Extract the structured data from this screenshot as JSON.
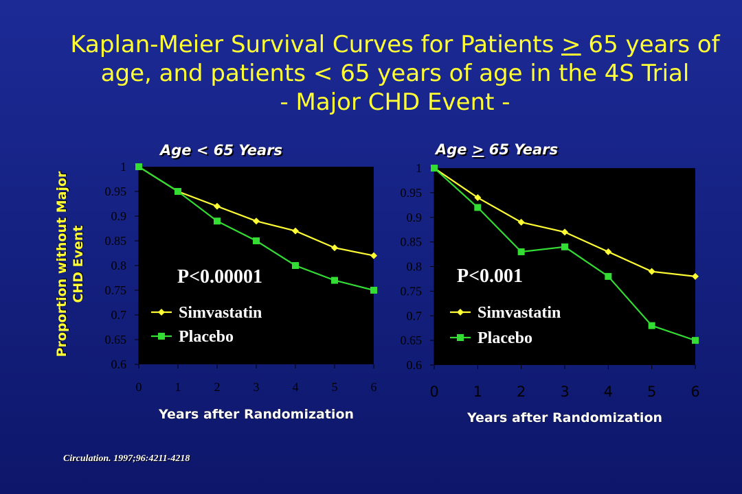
{
  "slide": {
    "title_part1": "Kaplan-Meier Survival Curves for Patients ",
    "title_ge": ">",
    "title_part2": " 65 years of",
    "title_line2": "age, and patients < 65 years of age in the 4S Trial",
    "title_line3": "- Major CHD Event -",
    "y_axis_label_line1": "Proportion without Major",
    "y_axis_label_line2": "CHD Event",
    "citation": "Circulation. 1997;96:4211-4218"
  },
  "panels": {
    "left_title": "Age < 65 Years",
    "right_title_a": "Age ",
    "right_title_ge": ">",
    "right_title_b": " 65 Years"
  },
  "colors": {
    "simvastatin": "#ffff33",
    "placebo": "#33dd33",
    "plot_background": "#000000",
    "title": "#ffff33"
  },
  "chart_data": [
    {
      "type": "line",
      "title": "Age < 65 Years",
      "xlabel": "Years after Randomization",
      "ylabel": "Proportion without Major CHD Event",
      "x": [
        0,
        1,
        2,
        3,
        4,
        5,
        6
      ],
      "xlim": [
        0,
        6
      ],
      "ylim": [
        0.6,
        1
      ],
      "yticks": [
        "1",
        "0.95",
        "0.9",
        "0.85",
        "0.8",
        "0.75",
        "0.7",
        "0.65",
        "0.6"
      ],
      "xticks": [
        "0",
        "1",
        "2",
        "3",
        "4",
        "5",
        "6"
      ],
      "series": [
        {
          "name": "Simvastatin",
          "marker": "diamond",
          "values": [
            1.0,
            0.95,
            0.92,
            0.89,
            0.87,
            0.836,
            0.82
          ]
        },
        {
          "name": "Placebo",
          "marker": "square",
          "values": [
            1.0,
            0.95,
            0.89,
            0.85,
            0.8,
            0.77,
            0.75
          ]
        }
      ],
      "annotation": "P<0.00001",
      "legend": "bottom-left inside plot",
      "grid": false
    },
    {
      "type": "line",
      "title": "Age > 65 Years",
      "xlabel": "Years after Randomization",
      "ylabel": "Proportion without Major CHD Event",
      "x": [
        0,
        1,
        2,
        3,
        4,
        5,
        6
      ],
      "xlim": [
        0,
        6
      ],
      "ylim": [
        0.6,
        1
      ],
      "yticks": [
        "1",
        "0.95",
        "0.9",
        "0.85",
        "0.8",
        "0.75",
        "0.7",
        "0.65",
        "0.6"
      ],
      "xticks": [
        "0",
        "1",
        "2",
        "3",
        "4",
        "5",
        "6"
      ],
      "series": [
        {
          "name": "Simvastatin",
          "marker": "diamond",
          "values": [
            1.0,
            0.94,
            0.89,
            0.87,
            0.83,
            0.79,
            0.78
          ]
        },
        {
          "name": "Placebo",
          "marker": "square",
          "values": [
            1.0,
            0.92,
            0.83,
            0.84,
            0.78,
            0.68,
            0.65
          ]
        }
      ],
      "annotation": "P<0.001",
      "legend": "bottom-left inside plot",
      "grid": false
    }
  ]
}
